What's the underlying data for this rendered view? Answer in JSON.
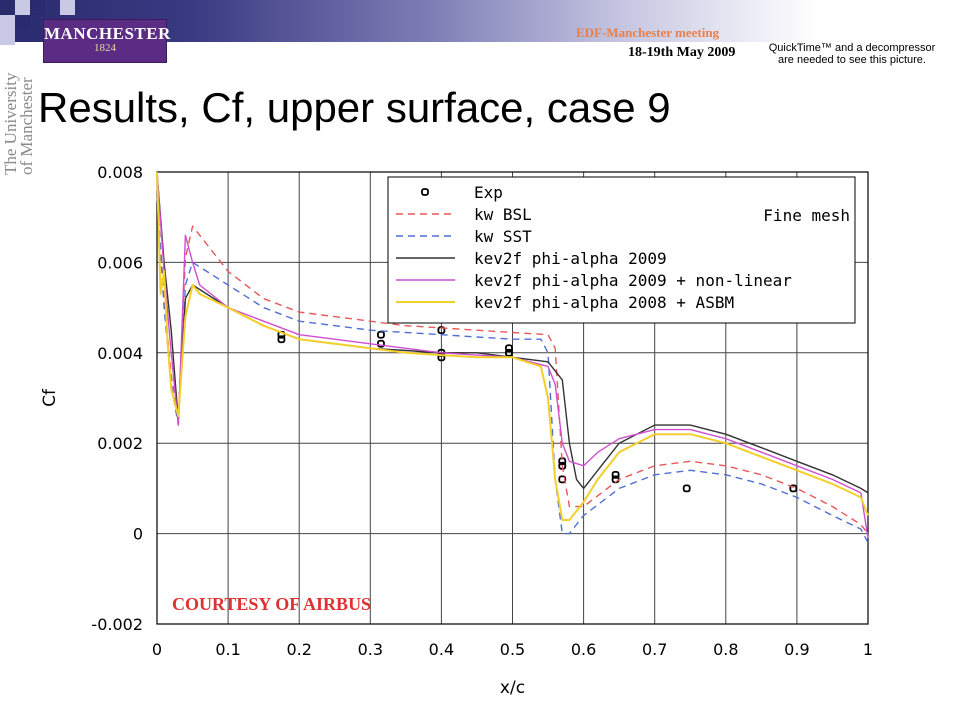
{
  "header": {
    "logo_name": "MANCHESTER",
    "logo_year": "1824",
    "meeting": "EDF-Manchester meeting",
    "date": "18-19th May 2009",
    "quicktime_notice": "QuickTime™ and a decompressor are needed to see this picture.",
    "university_vertical": "The University of Manchester"
  },
  "slide": {
    "title": "Results, Cf, upper surface, case 9",
    "courtesy": "COURTESY OF AIRBUS"
  },
  "colors": {
    "band_dark": "#2a2a6e",
    "logo_purple": "#5b2c83",
    "meeting_orange": "#e9804a",
    "courtesy_red": "#e03030"
  },
  "chart_data": {
    "type": "line",
    "xlabel": "x/c",
    "ylabel": "Cf",
    "xlim": [
      0,
      1
    ],
    "ylim": [
      -0.002,
      0.008
    ],
    "xticks": [
      "0",
      "0.1",
      "0.2",
      "0.3",
      "0.4",
      "0.5",
      "0.6",
      "0.7",
      "0.8",
      "0.9",
      "1"
    ],
    "yticks": [
      "-0.002",
      "0",
      "0.002",
      "0.004",
      "0.006",
      "0.008"
    ],
    "grid": true,
    "legend_position": "top-right",
    "annotation": "Fine mesh",
    "series": [
      {
        "name": "Exp",
        "style": "markers",
        "color": "#000000",
        "x": [
          0.175,
          0.175,
          0.315,
          0.315,
          0.4,
          0.4,
          0.4,
          0.495,
          0.495,
          0.57,
          0.57,
          0.57,
          0.645,
          0.645,
          0.745,
          0.895
        ],
        "y": [
          0.0043,
          0.0044,
          0.0042,
          0.0044,
          0.0039,
          0.004,
          0.0045,
          0.004,
          0.0041,
          0.0012,
          0.0015,
          0.0016,
          0.0012,
          0.0013,
          0.001,
          0.001
        ]
      },
      {
        "name": "kw BSL",
        "style": "dashed",
        "color": "#e8585a",
        "x": [
          0.0,
          0.01,
          0.02,
          0.03,
          0.04,
          0.05,
          0.07,
          0.1,
          0.15,
          0.2,
          0.25,
          0.3,
          0.35,
          0.4,
          0.45,
          0.5,
          0.55,
          0.56,
          0.57,
          0.58,
          0.6,
          0.65,
          0.7,
          0.75,
          0.8,
          0.85,
          0.9,
          0.95,
          0.99,
          1.0
        ],
        "y": [
          0.0075,
          0.0052,
          0.0035,
          0.0026,
          0.0061,
          0.0068,
          0.0064,
          0.0058,
          0.0052,
          0.0049,
          0.0048,
          0.0047,
          0.0046,
          0.00455,
          0.0045,
          0.00445,
          0.0044,
          0.0041,
          0.0015,
          0.0006,
          0.0006,
          0.0012,
          0.0015,
          0.0016,
          0.0015,
          0.0013,
          0.001,
          0.0006,
          0.0002,
          0.0
        ]
      },
      {
        "name": "kw SST",
        "style": "dashed",
        "color": "#4f6fd6",
        "x": [
          0.0,
          0.01,
          0.02,
          0.03,
          0.04,
          0.05,
          0.07,
          0.1,
          0.15,
          0.2,
          0.25,
          0.3,
          0.35,
          0.4,
          0.45,
          0.5,
          0.54,
          0.55,
          0.56,
          0.57,
          0.58,
          0.6,
          0.65,
          0.7,
          0.75,
          0.8,
          0.85,
          0.9,
          0.95,
          0.99,
          1.0
        ],
        "y": [
          0.0075,
          0.005,
          0.0033,
          0.0024,
          0.0055,
          0.006,
          0.0058,
          0.0055,
          0.005,
          0.0047,
          0.0046,
          0.0045,
          0.00445,
          0.0044,
          0.00435,
          0.0043,
          0.0043,
          0.004,
          0.0012,
          0.0,
          0.0,
          0.0004,
          0.001,
          0.0013,
          0.0014,
          0.0013,
          0.0011,
          0.0008,
          0.0004,
          0.0001,
          -0.0002
        ]
      },
      {
        "name": "kev2f phi-alpha 2009",
        "style": "solid",
        "color": "#333333",
        "x": [
          0.0,
          0.01,
          0.02,
          0.03,
          0.04,
          0.05,
          0.06,
          0.1,
          0.15,
          0.2,
          0.25,
          0.3,
          0.35,
          0.4,
          0.45,
          0.5,
          0.55,
          0.57,
          0.58,
          0.59,
          0.6,
          0.62,
          0.65,
          0.7,
          0.75,
          0.8,
          0.85,
          0.9,
          0.95,
          0.99,
          1.0
        ],
        "y": [
          0.008,
          0.006,
          0.0045,
          0.0025,
          0.0052,
          0.0055,
          0.0054,
          0.005,
          0.0046,
          0.0043,
          0.0042,
          0.0041,
          0.00405,
          0.004,
          0.004,
          0.0039,
          0.0038,
          0.0034,
          0.002,
          0.0012,
          0.001,
          0.0014,
          0.002,
          0.0024,
          0.0024,
          0.0022,
          0.0019,
          0.0016,
          0.0013,
          0.001,
          0.0009
        ]
      },
      {
        "name": "kev2f phi-alpha 2009 + non-linear",
        "style": "solid",
        "color": "#d04fd0",
        "x": [
          0.0,
          0.01,
          0.02,
          0.03,
          0.04,
          0.05,
          0.06,
          0.1,
          0.15,
          0.2,
          0.25,
          0.3,
          0.35,
          0.4,
          0.45,
          0.5,
          0.55,
          0.56,
          0.57,
          0.58,
          0.6,
          0.62,
          0.65,
          0.7,
          0.75,
          0.8,
          0.85,
          0.9,
          0.95,
          0.99,
          1.0
        ],
        "y": [
          0.008,
          0.0058,
          0.004,
          0.0024,
          0.0066,
          0.006,
          0.0055,
          0.005,
          0.0047,
          0.0044,
          0.0043,
          0.0042,
          0.0041,
          0.004,
          0.00395,
          0.0039,
          0.0037,
          0.0033,
          0.002,
          0.0016,
          0.0015,
          0.0018,
          0.0021,
          0.0023,
          0.0023,
          0.0021,
          0.0018,
          0.0015,
          0.0012,
          0.0009,
          -0.0001
        ]
      },
      {
        "name": "kev2f phi-alpha 2008 + ASBM",
        "style": "solid",
        "color": "#f2cf2a",
        "x": [
          0.0,
          0.005,
          0.01,
          0.015,
          0.02,
          0.03,
          0.04,
          0.05,
          0.06,
          0.1,
          0.15,
          0.2,
          0.25,
          0.3,
          0.35,
          0.4,
          0.45,
          0.5,
          0.54,
          0.55,
          0.56,
          0.57,
          0.58,
          0.6,
          0.62,
          0.65,
          0.7,
          0.75,
          0.8,
          0.85,
          0.9,
          0.95,
          0.99,
          1.0
        ],
        "y": [
          0.008,
          0.0053,
          0.0058,
          0.0042,
          0.0032,
          0.0026,
          0.0048,
          0.0055,
          0.0053,
          0.005,
          0.0046,
          0.0043,
          0.0042,
          0.0041,
          0.004,
          0.00395,
          0.0039,
          0.0039,
          0.0037,
          0.003,
          0.0012,
          0.0003,
          0.0003,
          0.0007,
          0.0012,
          0.0018,
          0.0022,
          0.0022,
          0.002,
          0.0017,
          0.0014,
          0.0011,
          0.0008,
          0.0004
        ]
      }
    ]
  }
}
